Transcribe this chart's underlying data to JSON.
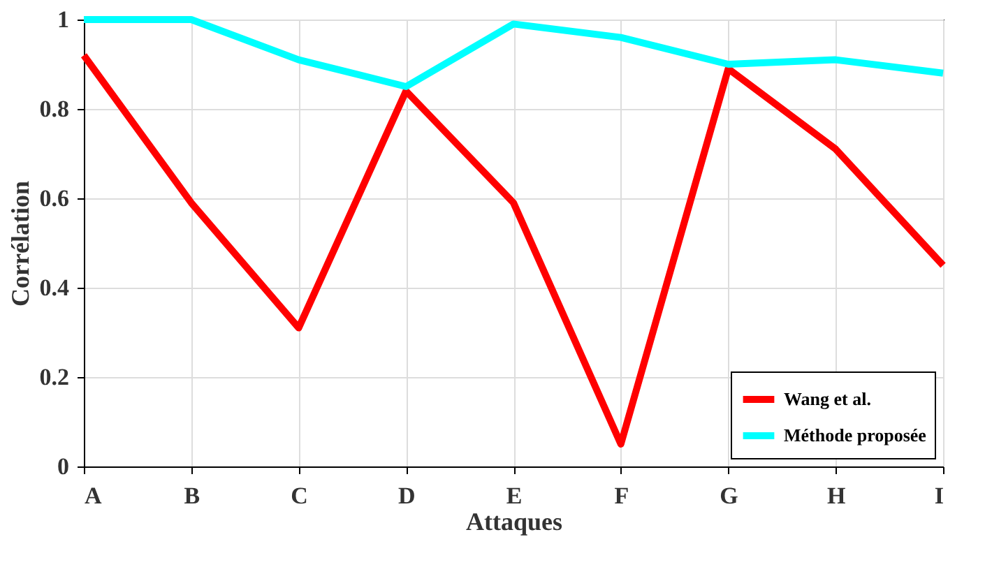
{
  "chart_data": {
    "type": "line",
    "xlabel": "Attaques",
    "ylabel": "Corrélation",
    "categories": [
      "A",
      "B",
      "C",
      "D",
      "E",
      "F",
      "G",
      "H",
      "I"
    ],
    "series": [
      {
        "name": "Wang et al.",
        "color": "#ff0000",
        "values": [
          0.92,
          0.59,
          0.31,
          0.84,
          0.59,
          0.05,
          0.89,
          0.71,
          0.45
        ]
      },
      {
        "name": "Méthode proposée",
        "color": "#00ffff",
        "values": [
          1.0,
          1.0,
          0.91,
          0.85,
          0.99,
          0.96,
          0.9,
          0.91,
          0.88
        ]
      }
    ],
    "ylim": [
      0,
      1
    ],
    "yticks": [
      0,
      0.2,
      0.4,
      0.6,
      0.8,
      1
    ],
    "grid": true,
    "legend": "bottom right",
    "line_style": "solid",
    "marker": "none"
  }
}
